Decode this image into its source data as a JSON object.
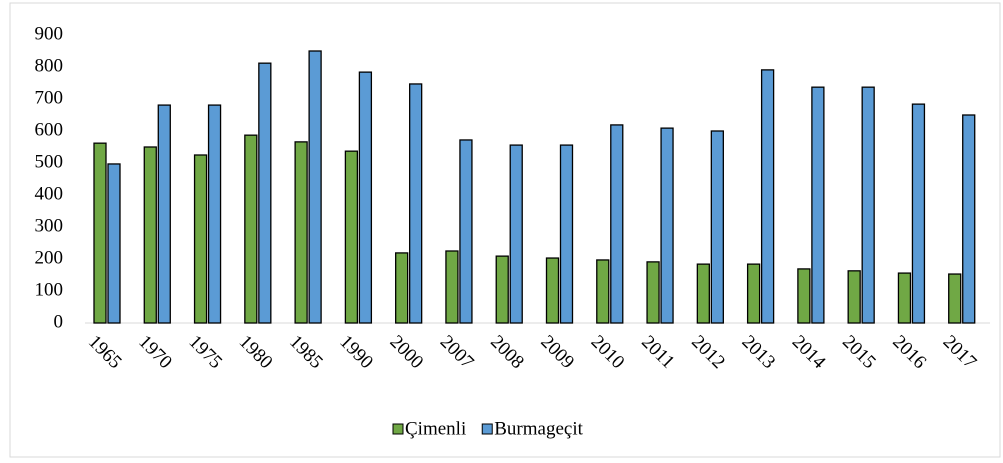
{
  "chart_data": {
    "type": "bar",
    "categories": [
      "1965",
      "1970",
      "1975",
      "1980",
      "1985",
      "1990",
      "2000",
      "2007",
      "2008",
      "2009",
      "2010",
      "2011",
      "2012",
      "2013",
      "2014",
      "2015",
      "2016",
      "2017"
    ],
    "series": [
      {
        "name": "Çimenli",
        "color": "#70a845",
        "values": [
          562,
          550,
          525,
          587,
          566,
          537,
          219,
          225,
          209,
          203,
          197,
          191,
          184,
          184,
          169,
          163,
          156,
          153
        ]
      },
      {
        "name": "Burmageçit",
        "color": "#5b9bd5",
        "values": [
          497,
          681,
          681,
          812,
          850,
          784,
          747,
          572,
          556,
          556,
          619,
          609,
          600,
          791,
          737,
          737,
          684,
          650
        ]
      }
    ],
    "ylim": [
      0,
      900
    ],
    "yticks": [
      0,
      100,
      200,
      300,
      400,
      500,
      600,
      700,
      800,
      900
    ],
    "grid": false,
    "legend": "bottom"
  }
}
